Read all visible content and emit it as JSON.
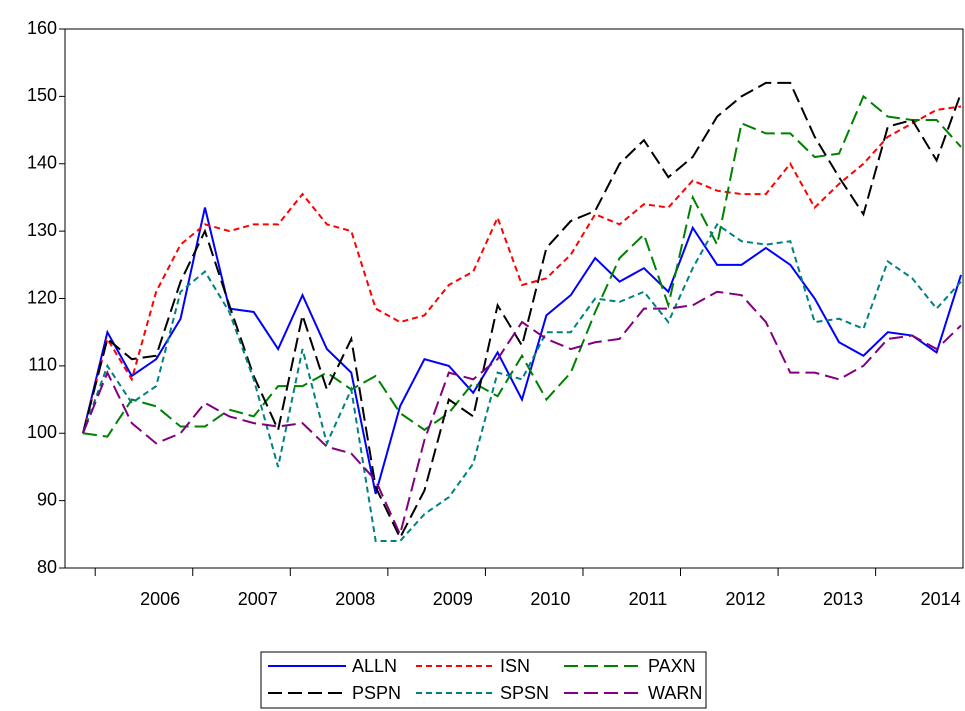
{
  "chart_data": {
    "type": "line",
    "categories": [
      null,
      null,
      null,
      "2006",
      null,
      null,
      null,
      "2007",
      null,
      null,
      null,
      "2008",
      null,
      null,
      null,
      "2009",
      null,
      null,
      null,
      "2010",
      null,
      null,
      null,
      "2011",
      null,
      null,
      null,
      "2012",
      null,
      null,
      null,
      "2013",
      null,
      null,
      null,
      "2014",
      null
    ],
    "ylim": [
      80,
      160
    ],
    "yticks": [
      80,
      90,
      100,
      110,
      120,
      130,
      140,
      150,
      160
    ],
    "legend": "bottom",
    "series": [
      {
        "name": "ALLN",
        "color": "#0000ff",
        "dash": "solid",
        "values": [
          100,
          115,
          108.5,
          111,
          117,
          133.5,
          118.5,
          118,
          112.5,
          120.5,
          112.5,
          109,
          91,
          104,
          111,
          110,
          106,
          112,
          105,
          117.5,
          120.5,
          126,
          122.5,
          124.5,
          121,
          130.5,
          125,
          125,
          127.5,
          125,
          120,
          113.5,
          111.5,
          115,
          114.5,
          112,
          123.5
        ]
      },
      {
        "name": "ISN",
        "color": "#ff0000",
        "dash": "short",
        "values": [
          100,
          114,
          108,
          121,
          128,
          131,
          130,
          131,
          131,
          135.5,
          131,
          130,
          118.5,
          116.5,
          117.5,
          122,
          124,
          132,
          122,
          123,
          126.5,
          132.5,
          131,
          134,
          133.5,
          137.5,
          136,
          135.5,
          135.5,
          140,
          133.5,
          137,
          140,
          144,
          146,
          148,
          148.5
        ]
      },
      {
        "name": "PAXN",
        "color": "#008000",
        "dash": "long",
        "values": [
          100,
          99.5,
          105,
          104,
          101,
          101,
          103.5,
          102.5,
          107,
          107,
          109,
          106.5,
          108.5,
          103,
          100.5,
          103,
          107.5,
          105.5,
          111.5,
          105,
          109,
          118,
          126,
          129.5,
          119,
          135,
          128,
          146,
          144.5,
          144.5,
          141,
          141.5,
          150,
          147,
          146.5,
          146.5,
          142.5
        ]
      },
      {
        "name": "PSPN",
        "color": "#000000",
        "dash": "long",
        "values": [
          100,
          114,
          111,
          111.5,
          122.5,
          130,
          119,
          108.5,
          100.5,
          117.5,
          106.5,
          114,
          92,
          84.5,
          91.5,
          105,
          102.5,
          119,
          113,
          127.5,
          131.5,
          133,
          140,
          143.5,
          138,
          141,
          147,
          150,
          152,
          152,
          144,
          138,
          132.5,
          145.5,
          146.5,
          140.5,
          150.5
        ]
      },
      {
        "name": "SPSN",
        "color": "#008080",
        "dash": "short",
        "values": [
          100,
          110,
          104.5,
          107,
          121,
          124,
          118,
          108,
          95,
          112.5,
          98.5,
          106.5,
          84,
          84,
          88,
          90.5,
          95.5,
          109,
          108,
          115,
          115,
          120,
          119.5,
          121,
          116.5,
          124.5,
          131,
          128.5,
          128,
          128.5,
          116.5,
          117,
          115.5,
          125.5,
          123,
          118.5,
          122.5
        ]
      },
      {
        "name": "WARN",
        "color": "#800080",
        "dash": "long",
        "values": [
          100,
          109,
          101.5,
          98.5,
          100,
          104.5,
          102.5,
          101.5,
          101,
          101.5,
          98,
          97,
          93,
          85,
          99,
          109,
          108,
          111,
          116.5,
          114,
          112.5,
          113.5,
          114,
          118.5,
          118.5,
          119,
          121,
          120.5,
          116.5,
          109,
          109,
          108,
          110,
          114,
          114.5,
          112.5,
          116
        ]
      }
    ]
  }
}
